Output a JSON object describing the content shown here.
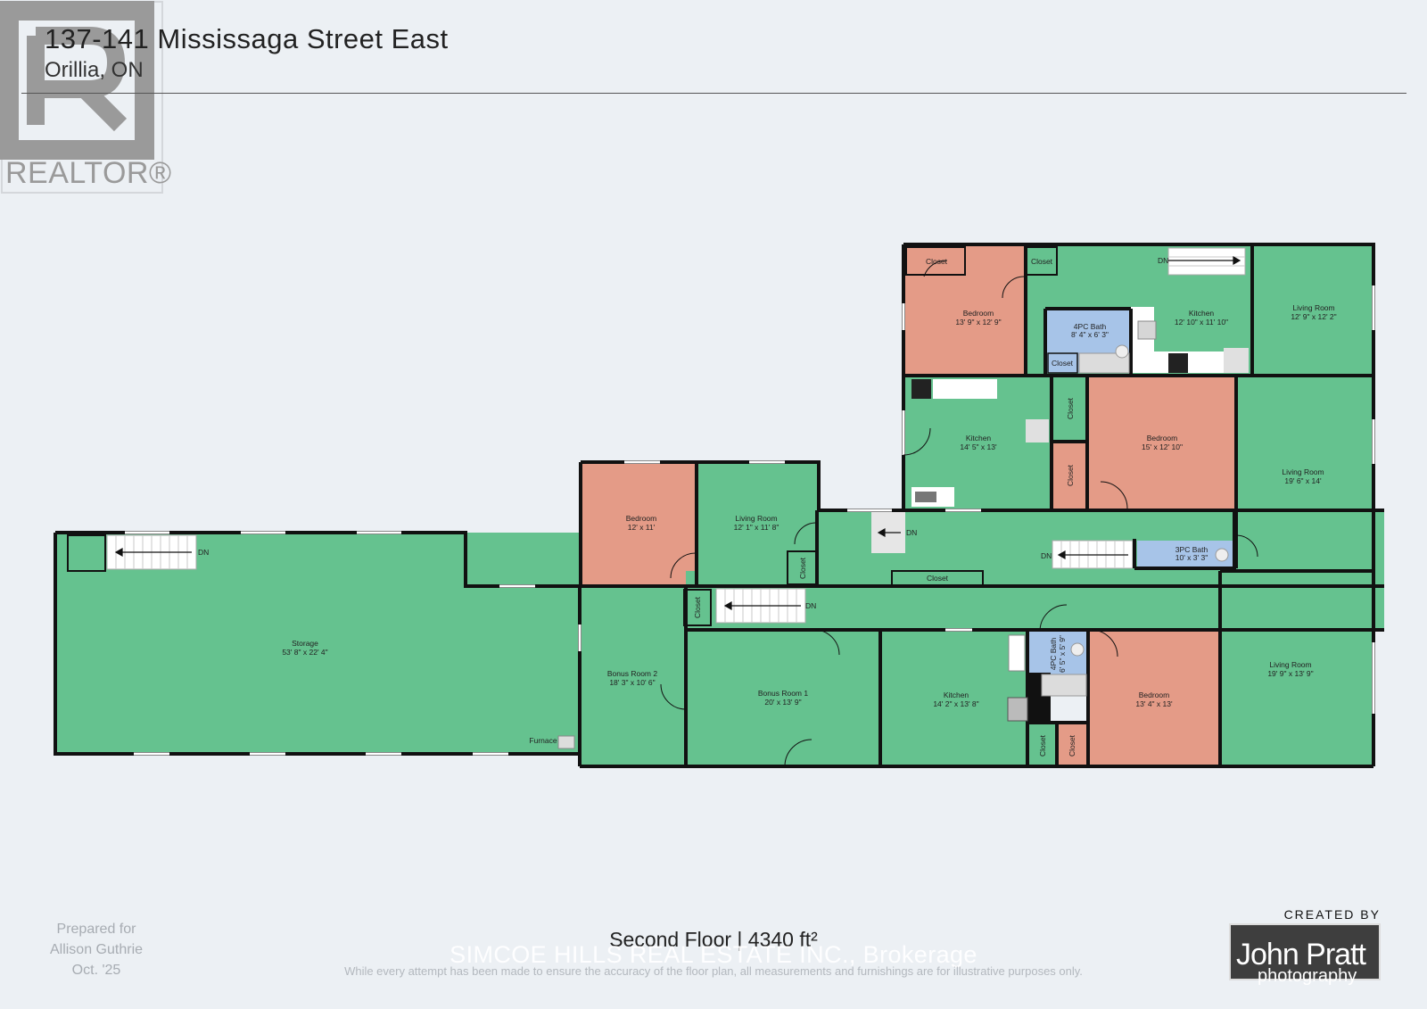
{
  "header": {
    "title": "137-141 Mississaga Street East",
    "subtitle": "Orillia, ON",
    "realtor_text": "REALTOR®"
  },
  "colors": {
    "room_green": "#65c28f",
    "bedroom": "#e49b87",
    "bath": "#a7c4e8",
    "wall": "#111111",
    "background": "#ecf0f4"
  },
  "rooms": {
    "storage": {
      "name": "Storage",
      "dims": "53' 8\" x 22' 4\""
    },
    "bonus2": {
      "name": "Bonus Room 2",
      "dims": "18' 3\" x 10' 6\""
    },
    "bonus1": {
      "name": "Bonus Room 1",
      "dims": "20' x 13' 9\""
    },
    "bedroom_a": {
      "name": "Bedroom",
      "dims": "12' x 11'"
    },
    "living_a": {
      "name": "Living Room",
      "dims": "12' 1\" x 11' 8\""
    },
    "bedroom_b": {
      "name": "Bedroom",
      "dims": "13' 9\" x 12' 9\""
    },
    "kitchen_b": {
      "name": "Kitchen",
      "dims": "12' 10\" x 11' 10\""
    },
    "living_b": {
      "name": "Living Room",
      "dims": "12' 9\" x 12' 2\""
    },
    "bath4_b": {
      "name": "4PC Bath",
      "dims": "8' 4\" x 6' 3\""
    },
    "kitchen_c": {
      "name": "Kitchen",
      "dims": "14' 5\" x 13'"
    },
    "bedroom_c": {
      "name": "Bedroom",
      "dims": "15' x 12' 10\""
    },
    "living_c": {
      "name": "Living Room",
      "dims": "19' 6\" x 14'"
    },
    "bath3": {
      "name": "3PC Bath",
      "dims": "10' x 3' 3\""
    },
    "kitchen_d": {
      "name": "Kitchen",
      "dims": "14' 2\" x 13' 8\""
    },
    "bath4_d": {
      "name": "4PC Bath",
      "dims": "6' 5\" x 5' 9\""
    },
    "bedroom_d": {
      "name": "Bedroom",
      "dims": "13' 4\" x 13'"
    },
    "living_d": {
      "name": "Living Room",
      "dims": "19' 9\" x 13' 9\""
    }
  },
  "labels": {
    "closet": "Closet",
    "dn": "DN",
    "furnace": "Furnace"
  },
  "footer": {
    "floor_label": "Second Floor | 4340 ft²",
    "watermark": "SIMCOE HILLS REAL ESTATE INC., Brokerage",
    "disclaimer": "While every attempt has been made to ensure the accuracy of the floor plan, all measurements and furnishings are for illustrative purposes only.",
    "prepared_for": [
      "Prepared for",
      "Allison Guthrie",
      "Oct. '25"
    ],
    "logo_created": "CREATED BY",
    "logo_name": "John Pratt",
    "logo_sub": "photography"
  }
}
